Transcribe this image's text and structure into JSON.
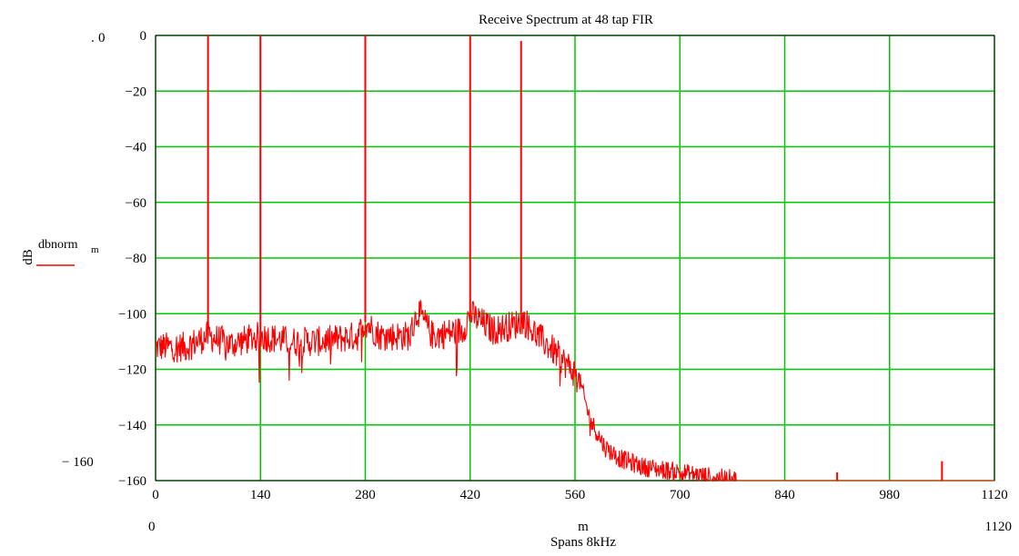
{
  "chart_data": {
    "type": "line",
    "title": "Receive Spectrum at  48 tap FIR",
    "xlabel_var": "m",
    "xlabel": "Spans 8kHz",
    "ylabel": "dB",
    "legend": {
      "series_label": "dbnorm",
      "series_subscript": "m",
      "color": "#ff0000",
      "placement": "left"
    },
    "corner_labels": {
      "y_top": "0",
      "y_bottom": "− 160",
      "x_left": "0",
      "x_right": "1120"
    },
    "xlim": [
      0,
      1120
    ],
    "ylim": [
      -160,
      0
    ],
    "xticks": [
      0,
      140,
      280,
      420,
      560,
      700,
      840,
      980,
      1120
    ],
    "yticks": [
      0,
      -20,
      -40,
      -60,
      -80,
      -100,
      -120,
      -140,
      -160
    ],
    "grid": true,
    "grid_color": "#00c800",
    "series": [
      {
        "name": "dbnorm_m",
        "color": "#ff0000",
        "noise_floor": [
          [
            0,
            -112
          ],
          [
            40,
            -112
          ],
          [
            70,
            -108
          ],
          [
            100,
            -111
          ],
          [
            140,
            -108
          ],
          [
            180,
            -110
          ],
          [
            220,
            -110
          ],
          [
            270,
            -108
          ],
          [
            280,
            -103
          ],
          [
            300,
            -108
          ],
          [
            340,
            -108
          ],
          [
            350,
            -99
          ],
          [
            370,
            -108
          ],
          [
            410,
            -106
          ],
          [
            420,
            -100
          ],
          [
            450,
            -106
          ],
          [
            480,
            -104
          ],
          [
            490,
            -102
          ],
          [
            510,
            -108
          ],
          [
            530,
            -113
          ],
          [
            555,
            -120
          ],
          [
            565,
            -123
          ],
          [
            580,
            -138
          ],
          [
            600,
            -148
          ],
          [
            620,
            -152
          ],
          [
            650,
            -155
          ],
          [
            700,
            -157
          ],
          [
            750,
            -159
          ],
          [
            800,
            -160
          ],
          [
            1120,
            -160
          ]
        ],
        "spikes": [
          {
            "x": 70,
            "y": 0
          },
          {
            "x": 140,
            "y": 0
          },
          {
            "x": 280,
            "y": 0
          },
          {
            "x": 420,
            "y": 0
          },
          {
            "x": 488,
            "y": -2
          },
          {
            "x": 910,
            "y": -157
          },
          {
            "x": 1050,
            "y": -153
          }
        ]
      }
    ]
  }
}
